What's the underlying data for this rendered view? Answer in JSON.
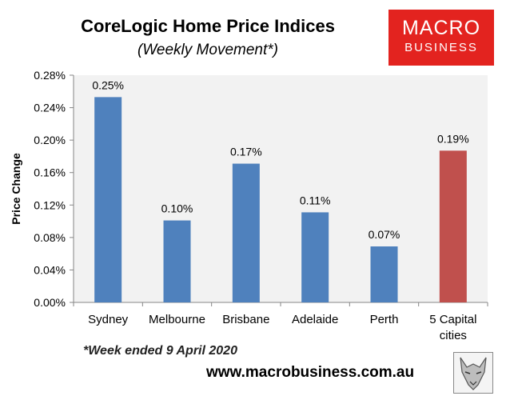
{
  "header": {
    "title": "CoreLogic Home Price Indices",
    "subtitle": "(Weekly Movement*)"
  },
  "logo": {
    "line1": "MACRO",
    "line2": "BUSINESS",
    "color": "#e3231f"
  },
  "footer": {
    "footnote": "*Week ended 9 April 2020",
    "website": "www.macrobusiness.com.au",
    "wolf_icon": "wolf-head-icon"
  },
  "colors": {
    "bar_default": "#4f81bd",
    "bar_highlight": "#c0504d",
    "plot_bg": "#f2f2f2"
  },
  "chart_data": {
    "type": "bar",
    "title": "CoreLogic Home Price Indices",
    "subtitle": "(Weekly Movement*)",
    "xlabel": "",
    "ylabel": "Price Change",
    "categories": [
      [
        "Sydney"
      ],
      [
        "Melbourne"
      ],
      [
        "Brisbane"
      ],
      [
        "Adelaide"
      ],
      [
        "Perth"
      ],
      [
        "5 Capital",
        "cities"
      ]
    ],
    "values": [
      0.253,
      0.101,
      0.171,
      0.111,
      0.069,
      0.187
    ],
    "data_labels": [
      "0.25%",
      "0.10%",
      "0.17%",
      "0.11%",
      "0.07%",
      "0.19%"
    ],
    "highlight_index": 5,
    "ylim": [
      0,
      0.28
    ],
    "yticks": [
      0,
      0.04,
      0.08,
      0.12,
      0.16,
      0.2,
      0.24,
      0.28
    ],
    "ytick_labels": [
      "0.00%",
      "0.04%",
      "0.08%",
      "0.12%",
      "0.16%",
      "0.20%",
      "0.24%",
      "0.28%"
    ],
    "grid": false,
    "legend": "none"
  }
}
